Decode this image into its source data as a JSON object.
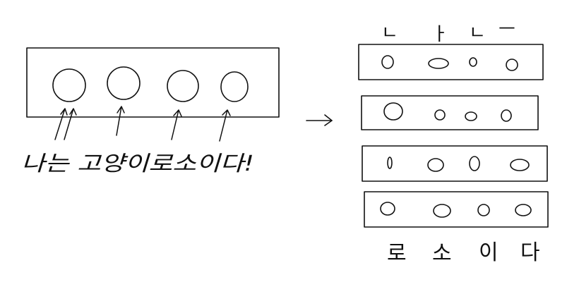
{
  "caption": "나는 고양이로소이다!",
  "top_labels": [
    "ㄴ",
    "ㅏ",
    "ㄴ",
    "ㅡ"
  ],
  "bottom_labels": [
    "로",
    "소",
    "이",
    "다"
  ],
  "arrow_glyph": "→",
  "ink_color": "#111111"
}
